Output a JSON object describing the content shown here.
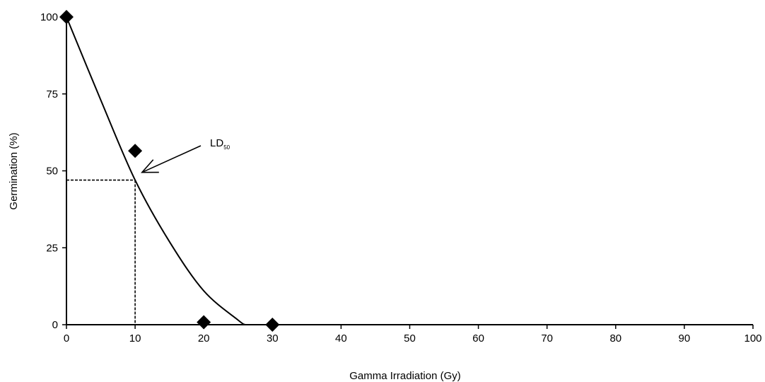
{
  "chart_data": {
    "type": "scatter",
    "xlabel": "Gamma Irradiation (Gy)",
    "ylabel": "Germination (%)",
    "xlim": [
      0,
      100
    ],
    "ylim": [
      0,
      100
    ],
    "xticks": [
      0,
      10,
      20,
      30,
      40,
      50,
      60,
      70,
      80,
      90,
      100
    ],
    "yticks": [
      0,
      25,
      50,
      75,
      100
    ],
    "grid": false,
    "points": [
      {
        "x": 0,
        "y": 100
      },
      {
        "x": 10,
        "y": 56.5
      },
      {
        "x": 20,
        "y": 0.8
      },
      {
        "x": 30,
        "y": 0
      }
    ],
    "fit_curve": [
      {
        "x": 0,
        "y": 100
      },
      {
        "x": 5,
        "y": 73
      },
      {
        "x": 10,
        "y": 47
      },
      {
        "x": 15,
        "y": 27
      },
      {
        "x": 20,
        "y": 11
      },
      {
        "x": 25,
        "y": 1.5
      },
      {
        "x": 26,
        "y": 0
      }
    ],
    "reference": {
      "x": 10,
      "y": 47
    },
    "annotation": {
      "text": "LD",
      "subscript": "50",
      "arrow_to": {
        "x": 11,
        "y": 49.5
      }
    },
    "marker": "diamond",
    "color": "#000000"
  }
}
